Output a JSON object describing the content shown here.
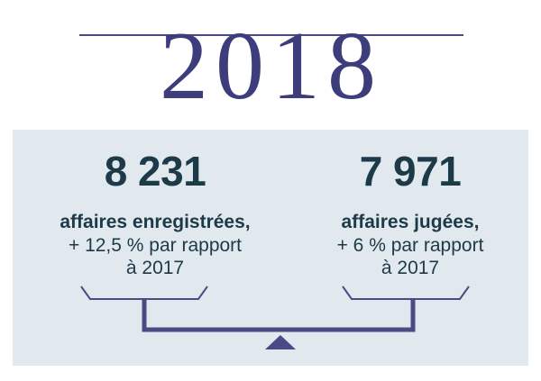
{
  "year": "2018",
  "left_stat": {
    "number": "8 231",
    "label": "affaires enregistrées,",
    "detail_line1": "+ 12,5 % par rapport",
    "detail_line2": "à 2017"
  },
  "right_stat": {
    "number": "7 971",
    "label": "affaires jugées,",
    "detail_line1": "+ 6 % par rapport",
    "detail_line2": "à 2017"
  },
  "colors": {
    "accent": "#4a4a85",
    "panel": "#e1e8ee",
    "text": "#1d3a48"
  }
}
